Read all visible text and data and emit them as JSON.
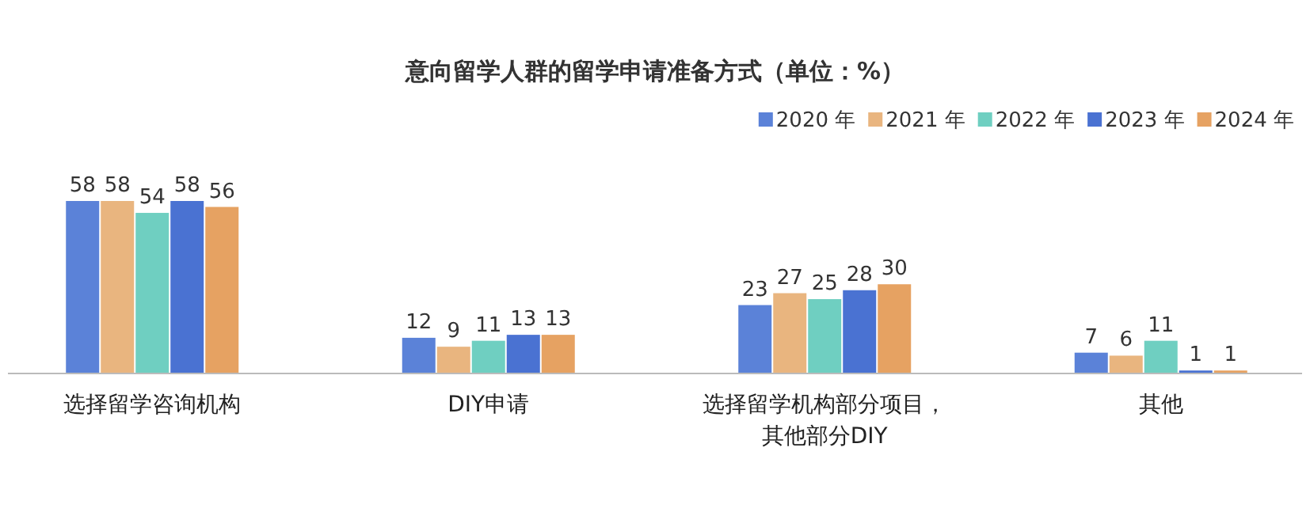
{
  "chart_data": {
    "type": "bar",
    "title": "意向留学人群的留学申请准备方式（单位：%）",
    "categories": [
      "选择留学咨询机构",
      "DIY申请",
      "选择留学机构部分项目，其他部分DIY",
      "其他"
    ],
    "series": [
      {
        "name": "2020 年",
        "color": "#5b82d8",
        "values": [
          58,
          12,
          23,
          7
        ]
      },
      {
        "name": "2021 年",
        "color": "#e9b57f",
        "values": [
          58,
          9,
          27,
          6
        ]
      },
      {
        "name": "2022 年",
        "color": "#6fcfc1",
        "values": [
          54,
          11,
          25,
          11
        ]
      },
      {
        "name": "2023 年",
        "color": "#4a72d2",
        "values": [
          58,
          13,
          28,
          1
        ]
      },
      {
        "name": "2024 年",
        "color": "#e6a262",
        "values": [
          56,
          13,
          30,
          1
        ]
      }
    ],
    "data_labels": true,
    "legend": "top right"
  }
}
